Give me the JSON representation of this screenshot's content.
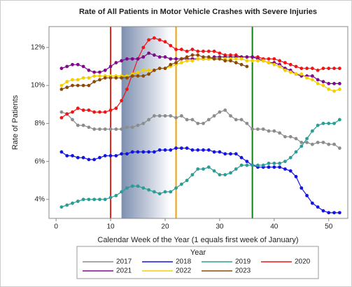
{
  "chart_data": {
    "type": "line",
    "title": "Rate of All Patients in Motor Vehicle Crashes with Severe Injuries",
    "x_label": "Calendar Week of the Year (1 equals first week of January)",
    "y_label": "Rate of Patients",
    "legend_title": "Year",
    "legend_position": "bottom",
    "grid": false,
    "x": [
      1,
      2,
      3,
      4,
      5,
      6,
      7,
      8,
      9,
      10,
      11,
      12,
      13,
      14,
      15,
      16,
      17,
      18,
      19,
      20,
      21,
      22,
      23,
      24,
      25,
      26,
      27,
      28,
      29,
      30,
      31,
      32,
      33,
      34,
      35,
      36,
      37,
      38,
      39,
      40,
      41,
      42,
      43,
      44,
      45,
      46,
      47,
      48,
      49,
      50,
      51,
      52
    ],
    "xlim": [
      -1.3,
      53.5
    ],
    "xticks": [
      0,
      10,
      20,
      30,
      40,
      50
    ],
    "ylim": [
      3.0,
      13.1
    ],
    "yticks": [
      {
        "value": 4,
        "label": "4%"
      },
      {
        "value": 6,
        "label": "6%"
      },
      {
        "value": 8,
        "label": "8%"
      },
      {
        "value": 10,
        "label": "10%"
      },
      {
        "value": 12,
        "label": "12%"
      }
    ],
    "shaded_range": [
      12,
      21
    ],
    "shade_color": "#7d8fb0",
    "reference_lines": [
      {
        "x": 10,
        "color": "#e8201a"
      },
      {
        "x": 22,
        "color": "#f0a000"
      },
      {
        "x": 36,
        "color": "#108010"
      }
    ],
    "series": [
      {
        "name": "2017",
        "color": "#8c8c8c",
        "values": [
          8.6,
          8.5,
          8.2,
          7.9,
          7.9,
          7.8,
          7.7,
          7.7,
          7.7,
          7.7,
          7.7,
          7.7,
          7.8,
          7.8,
          7.9,
          8.0,
          8.2,
          8.4,
          8.4,
          8.4,
          8.4,
          8.3,
          8.4,
          8.2,
          8.2,
          8.0,
          8.0,
          8.2,
          8.4,
          8.6,
          8.7,
          8.4,
          8.2,
          8.2,
          8.0,
          7.7,
          7.7,
          7.7,
          7.6,
          7.6,
          7.5,
          7.3,
          7.3,
          7.2,
          7.0,
          7.0,
          6.9,
          7.0,
          7.0,
          6.9,
          6.9,
          6.7
        ]
      },
      {
        "name": "2018",
        "color": "#1414e0",
        "values": [
          6.5,
          6.3,
          6.3,
          6.2,
          6.2,
          6.1,
          6.1,
          6.2,
          6.3,
          6.3,
          6.3,
          6.4,
          6.4,
          6.5,
          6.5,
          6.5,
          6.5,
          6.5,
          6.6,
          6.6,
          6.6,
          6.7,
          6.7,
          6.7,
          6.6,
          6.6,
          6.6,
          6.6,
          6.5,
          6.5,
          6.4,
          6.4,
          6.4,
          6.2,
          6.0,
          5.8,
          5.7,
          5.7,
          5.7,
          5.7,
          5.7,
          5.6,
          5.5,
          5.2,
          4.6,
          4.2,
          3.8,
          3.6,
          3.4,
          3.3,
          3.3,
          3.3
        ]
      },
      {
        "name": "2019",
        "color": "#2a9d94",
        "values": [
          3.6,
          3.7,
          3.8,
          3.9,
          4.0,
          4.0,
          4.0,
          4.0,
          4.0,
          4.1,
          4.2,
          4.4,
          4.6,
          4.7,
          4.7,
          4.6,
          4.5,
          4.4,
          4.3,
          4.4,
          4.4,
          4.6,
          4.8,
          5.0,
          5.3,
          5.6,
          5.6,
          5.7,
          5.5,
          5.3,
          5.3,
          5.4,
          5.6,
          5.8,
          5.8,
          5.8,
          5.8,
          5.8,
          5.9,
          5.9,
          5.9,
          6.0,
          6.2,
          6.5,
          6.8,
          7.2,
          7.6,
          7.9,
          8.0,
          8.0,
          8.0,
          8.2
        ]
      },
      {
        "name": "2020",
        "color": "#f01414",
        "values": [
          8.3,
          8.5,
          8.6,
          8.8,
          8.7,
          8.7,
          8.6,
          8.6,
          8.6,
          8.7,
          8.8,
          9.2,
          9.8,
          10.6,
          11.4,
          12.0,
          12.4,
          12.5,
          12.4,
          12.3,
          12.1,
          11.9,
          11.9,
          11.8,
          11.9,
          11.8,
          11.8,
          11.8,
          11.8,
          11.7,
          11.6,
          11.6,
          11.6,
          11.5,
          11.5,
          11.5,
          11.5,
          11.4,
          11.4,
          11.4,
          11.3,
          11.2,
          11.1,
          11.0,
          10.9,
          10.9,
          10.9,
          10.8,
          10.9,
          10.9,
          10.9,
          10.9
        ]
      },
      {
        "name": "2021",
        "color": "#800a8c",
        "values": [
          10.9,
          11.0,
          11.1,
          11.1,
          11.0,
          10.8,
          10.7,
          10.7,
          10.8,
          11.0,
          11.2,
          11.3,
          11.4,
          11.4,
          11.4,
          11.5,
          11.7,
          11.6,
          11.5,
          11.5,
          11.4,
          11.4,
          11.4,
          11.4,
          11.4,
          11.4,
          11.4,
          11.4,
          11.5,
          11.5,
          11.5,
          11.5,
          11.5,
          11.5,
          11.5,
          11.5,
          11.4,
          11.3,
          11.2,
          11.2,
          11.1,
          10.9,
          10.8,
          10.6,
          10.5,
          10.5,
          10.5,
          10.3,
          10.2,
          10.1,
          10.1,
          10.1
        ]
      },
      {
        "name": "2022",
        "color": "#f2d000",
        "values": [
          10.0,
          10.2,
          10.3,
          10.3,
          10.4,
          10.4,
          10.5,
          10.5,
          10.5,
          10.5,
          10.5,
          10.5,
          10.5,
          10.6,
          10.7,
          10.8,
          10.8,
          10.8,
          10.9,
          10.9,
          11.0,
          11.1,
          11.2,
          11.3,
          11.3,
          11.4,
          11.4,
          11.4,
          11.4,
          11.4,
          11.4,
          11.4,
          11.4,
          11.4,
          11.3,
          11.3,
          11.3,
          11.3,
          11.2,
          11.1,
          11.0,
          10.8,
          10.7,
          10.6,
          10.6,
          10.4,
          10.3,
          10.1,
          10.0,
          9.8,
          9.7,
          9.8
        ]
      },
      {
        "name": "2023",
        "color": "#8b4a0a",
        "values": [
          9.8,
          9.9,
          10.0,
          10.0,
          10.0,
          10.0,
          10.2,
          10.3,
          10.4,
          10.4,
          10.4,
          10.4,
          10.4,
          10.5,
          10.5,
          10.5,
          10.6,
          10.8,
          10.9,
          10.9,
          11.1,
          11.2,
          11.4,
          11.5,
          11.6,
          11.6,
          11.5,
          11.5,
          11.4,
          11.4,
          11.3,
          11.3,
          11.2,
          11.1,
          11.0,
          null,
          null,
          null,
          null,
          null,
          null,
          null,
          null,
          null,
          null,
          null,
          null,
          null,
          null,
          null,
          null,
          null
        ]
      }
    ]
  }
}
